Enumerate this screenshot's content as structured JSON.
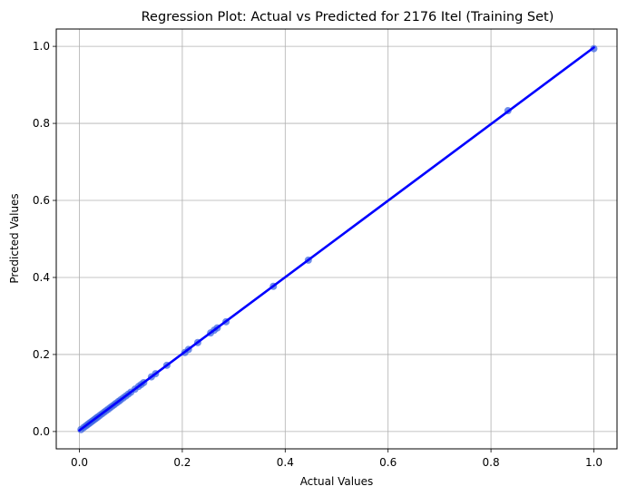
{
  "chart_data": {
    "type": "scatter",
    "title": "Regression Plot: Actual vs Predicted for 2176 Itel (Training Set)",
    "xlabel": "Actual Values",
    "ylabel": "Predicted Values",
    "xlim": [
      -0.045,
      1.045
    ],
    "ylim": [
      -0.045,
      1.045
    ],
    "xticks": [
      0.0,
      0.2,
      0.4,
      0.6,
      0.8,
      1.0
    ],
    "yticks": [
      0.0,
      0.2,
      0.4,
      0.6,
      0.8,
      1.0
    ],
    "xtick_labels": [
      "0.0",
      "0.2",
      "0.4",
      "0.6",
      "0.8",
      "1.0"
    ],
    "ytick_labels": [
      "0.0",
      "0.2",
      "0.4",
      "0.6",
      "0.8",
      "1.0"
    ],
    "grid": true,
    "point_color": "#4169e1",
    "line_color": "#0000ff",
    "regression_line": {
      "x": [
        0.0,
        1.0
      ],
      "y": [
        0.003,
        0.997
      ]
    },
    "points": [
      {
        "x": 0.003,
        "y": 0.005
      },
      {
        "x": 0.008,
        "y": 0.01
      },
      {
        "x": 0.012,
        "y": 0.014
      },
      {
        "x": 0.015,
        "y": 0.017
      },
      {
        "x": 0.018,
        "y": 0.02
      },
      {
        "x": 0.021,
        "y": 0.023
      },
      {
        "x": 0.024,
        "y": 0.026
      },
      {
        "x": 0.027,
        "y": 0.029
      },
      {
        "x": 0.03,
        "y": 0.032
      },
      {
        "x": 0.033,
        "y": 0.035
      },
      {
        "x": 0.036,
        "y": 0.038
      },
      {
        "x": 0.04,
        "y": 0.042
      },
      {
        "x": 0.044,
        "y": 0.046
      },
      {
        "x": 0.048,
        "y": 0.05
      },
      {
        "x": 0.052,
        "y": 0.054
      },
      {
        "x": 0.056,
        "y": 0.058
      },
      {
        "x": 0.06,
        "y": 0.062
      },
      {
        "x": 0.064,
        "y": 0.066
      },
      {
        "x": 0.068,
        "y": 0.07
      },
      {
        "x": 0.072,
        "y": 0.074
      },
      {
        "x": 0.076,
        "y": 0.078
      },
      {
        "x": 0.08,
        "y": 0.082
      },
      {
        "x": 0.085,
        "y": 0.087
      },
      {
        "x": 0.09,
        "y": 0.092
      },
      {
        "x": 0.095,
        "y": 0.097
      },
      {
        "x": 0.1,
        "y": 0.102
      },
      {
        "x": 0.108,
        "y": 0.11
      },
      {
        "x": 0.115,
        "y": 0.117
      },
      {
        "x": 0.12,
        "y": 0.122
      },
      {
        "x": 0.125,
        "y": 0.127
      },
      {
        "x": 0.14,
        "y": 0.142
      },
      {
        "x": 0.148,
        "y": 0.15
      },
      {
        "x": 0.17,
        "y": 0.172
      },
      {
        "x": 0.205,
        "y": 0.205
      },
      {
        "x": 0.212,
        "y": 0.213
      },
      {
        "x": 0.23,
        "y": 0.231
      },
      {
        "x": 0.255,
        "y": 0.256
      },
      {
        "x": 0.262,
        "y": 0.263
      },
      {
        "x": 0.268,
        "y": 0.269
      },
      {
        "x": 0.285,
        "y": 0.285
      },
      {
        "x": 0.377,
        "y": 0.377
      },
      {
        "x": 0.445,
        "y": 0.445
      },
      {
        "x": 0.833,
        "y": 0.833
      },
      {
        "x": 1.0,
        "y": 0.994
      }
    ]
  }
}
